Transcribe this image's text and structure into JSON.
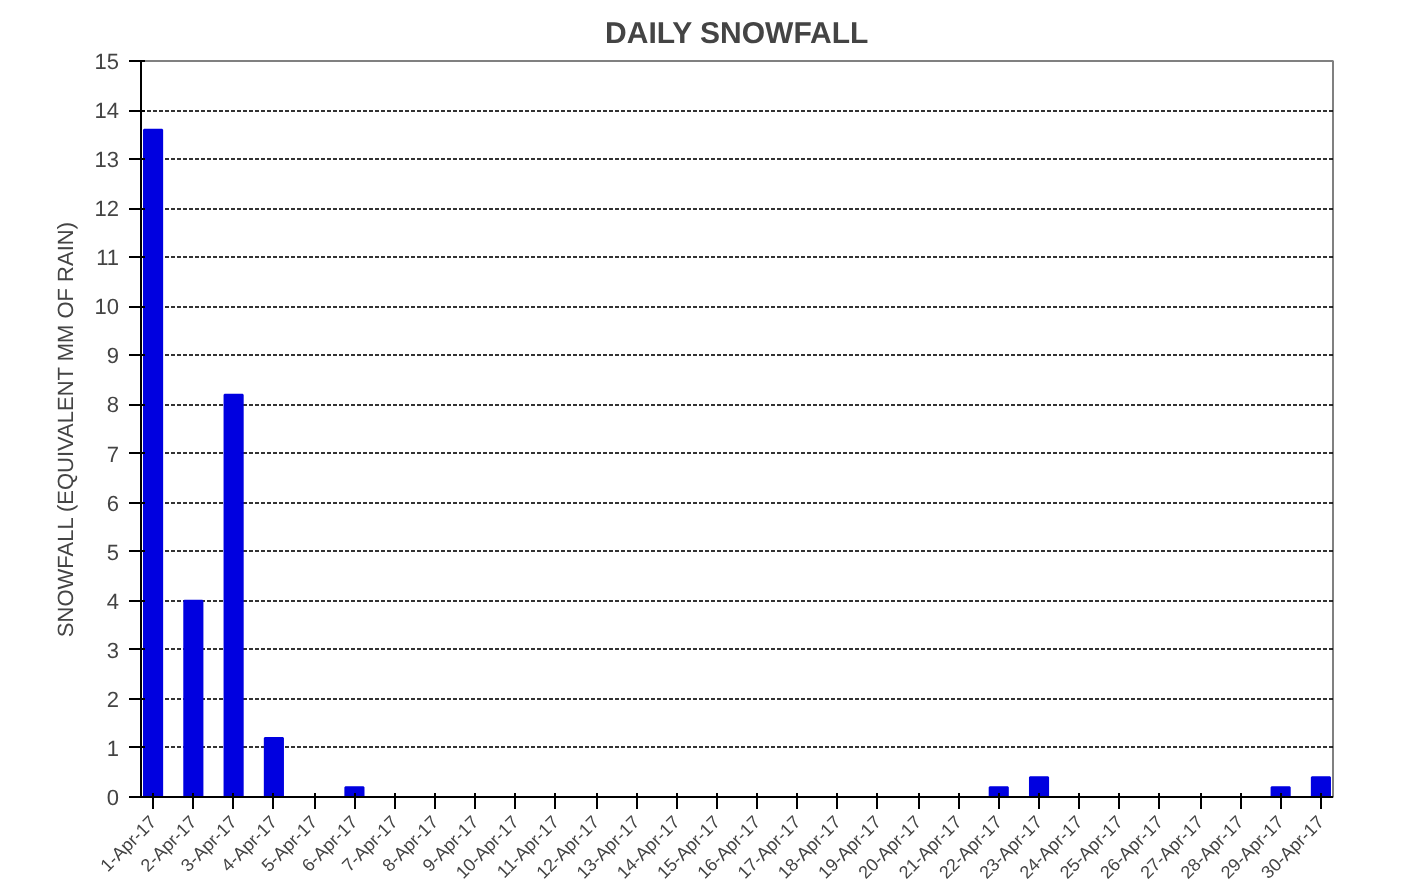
{
  "chart_data": {
    "type": "bar",
    "title": "DAILY SNOWFALL",
    "ylabel": "SNOWFALL (EQUIVALENT MM OF RAIN)",
    "categories": [
      "1-Apr-17",
      "2-Apr-17",
      "3-Apr-17",
      "4-Apr-17",
      "5-Apr-17",
      "6-Apr-17",
      "7-Apr-17",
      "8-Apr-17",
      "9-Apr-17",
      "10-Apr-17",
      "11-Apr-17",
      "12-Apr-17",
      "13-Apr-17",
      "14-Apr-17",
      "15-Apr-17",
      "16-Apr-17",
      "17-Apr-17",
      "18-Apr-17",
      "19-Apr-17",
      "20-Apr-17",
      "21-Apr-17",
      "22-Apr-17",
      "23-Apr-17",
      "24-Apr-17",
      "25-Apr-17",
      "26-Apr-17",
      "27-Apr-17",
      "28-Apr-17",
      "29-Apr-17",
      "30-Apr-17"
    ],
    "values": [
      13.6,
      4.0,
      8.2,
      1.2,
      0,
      0.2,
      0,
      0,
      0,
      0,
      0,
      0,
      0,
      0,
      0,
      0,
      0,
      0,
      0,
      0,
      0,
      0.2,
      0.4,
      0,
      0,
      0,
      0,
      0,
      0.2,
      0.4
    ],
    "color": "#0000e0",
    "ylim": [
      0,
      15
    ],
    "yticks": [
      0,
      1,
      2,
      3,
      4,
      5,
      6,
      7,
      8,
      9,
      10,
      11,
      12,
      13,
      14,
      15
    ],
    "grid": "y"
  }
}
